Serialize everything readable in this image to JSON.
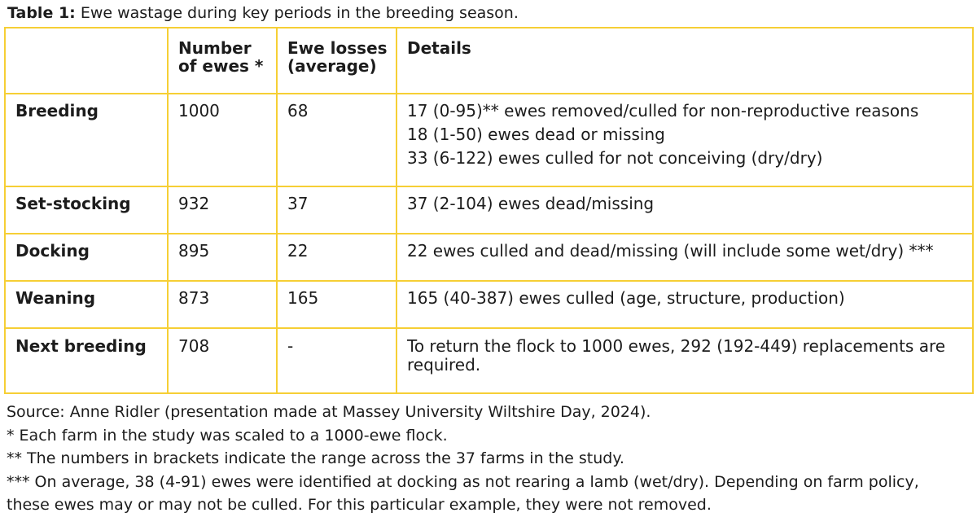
{
  "caption": {
    "lead": "Table 1:",
    "rest": "Ewe wastage during key periods in the breeding season."
  },
  "table": {
    "headers": {
      "period": "",
      "number_of_ewes_line1": "Number",
      "number_of_ewes_line2": "of ewes *",
      "ewe_losses_line1": "Ewe losses",
      "ewe_losses_line2": "(average)",
      "details": "Details"
    },
    "rows": [
      {
        "period": "Breeding",
        "number_of_ewes": "1000",
        "ewe_losses": "68",
        "details": [
          "17 (0-95)** ewes removed/culled for non-reproductive reasons",
          "18 (1-50) ewes dead or missing",
          "33 (6-122) ewes culled for not conceiving (dry/dry)"
        ]
      },
      {
        "period": "Set-stocking",
        "number_of_ewes": "932",
        "ewe_losses": "37",
        "details": [
          "37 (2-104) ewes dead/missing"
        ]
      },
      {
        "period": "Docking",
        "number_of_ewes": "895",
        "ewe_losses": "22",
        "details": [
          "22 ewes culled and dead/missing (will include some wet/dry) ***"
        ]
      },
      {
        "period": "Weaning",
        "number_of_ewes": "873",
        "ewe_losses": "165",
        "details": [
          "165 (40-387) ewes culled (age, structure, production)"
        ]
      },
      {
        "period": "Next breeding",
        "number_of_ewes": "708",
        "ewe_losses": "-",
        "details": [
          "To return the flock to 1000 ewes, 292 (192-449) replacements are required."
        ]
      }
    ]
  },
  "notes": {
    "source": "Source: Anne Ridler (presentation made at Massey University Wiltshire Day, 2024).",
    "note1": "* Each farm in the study was scaled to a 1000-ewe flock.",
    "note2": "** The numbers in brackets indicate the range across the 37 farms in the study.",
    "note3_line1": "*** On average, 38 (4-91) ewes were identified at docking as not rearing a lamb (wet/dry). Depending on farm policy,",
    "note3_line2": "these ewes may or may not be culled. For this particular example, they were not removed."
  },
  "colors": {
    "table_border": "#f6cf35",
    "text": "#1c1c1c"
  }
}
